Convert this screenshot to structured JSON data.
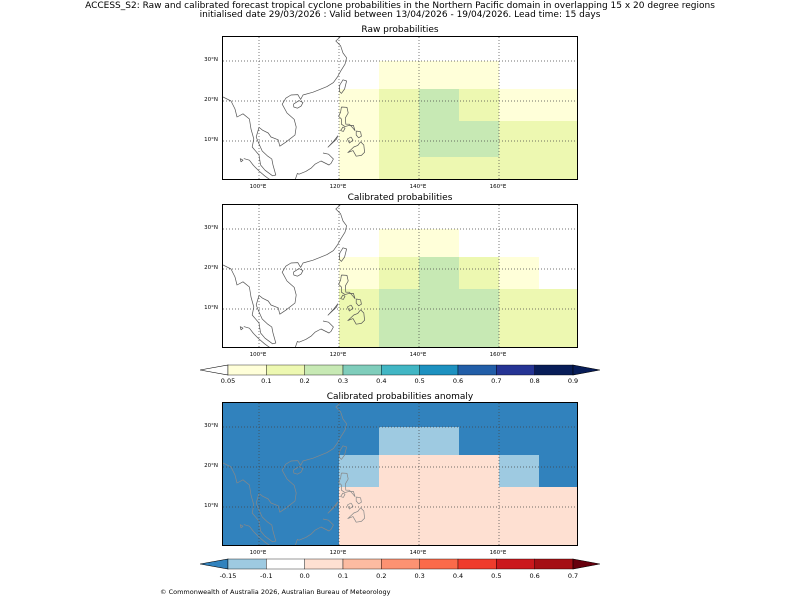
{
  "title": {
    "line1": "ACCESS_S2: Raw and calibrated forecast tropical cyclone probabilities in the Northern Pacific domain in overlapping 15 x 20 degree regions",
    "line2": "initialised date 29/03/2026 :  Valid between 13/04/2026 - 19/04/2026. Lead time: 15 days"
  },
  "map_extent": {
    "lon_min": 91,
    "lon_max": 180,
    "lat_min": 0,
    "lat_max": 36
  },
  "lat_ticks": [
    {
      "value": 10,
      "label": "10°N"
    },
    {
      "value": 20,
      "label": "20°N"
    },
    {
      "value": 30,
      "label": "30°N"
    }
  ],
  "lon_ticks": [
    {
      "value": 100,
      "label": "100°E"
    },
    {
      "value": 120,
      "label": "120°E"
    },
    {
      "value": 140,
      "label": "140°E"
    },
    {
      "value": 160,
      "label": "160°E"
    }
  ],
  "colors": {
    "prob_bins": [
      "#ffffd9",
      "#edf8b1",
      "#c7e9b4",
      "#7fcdbb",
      "#41b6c4",
      "#1d91c0",
      "#225ea8",
      "#253494",
      "#081d58"
    ],
    "anom_bins": [
      "#3182bd",
      "#9ecae1",
      "#ffffff",
      "#fee0d2",
      "#fcbba1",
      "#fc9272",
      "#fb6a4a",
      "#ef3b2c",
      "#cb181d",
      "#a50f15",
      "#67000d"
    ],
    "coast": "#555555",
    "coast_anomaly": "#888888"
  },
  "panels": [
    {
      "title": "Raw probabilities",
      "cells": [
        {
          "lon": [
            130,
            160
          ],
          "lat": [
            23,
            30
          ],
          "prob": 0.08
        },
        {
          "lon": [
            120,
            130
          ],
          "lat": [
            0,
            23
          ],
          "prob": 0.08
        },
        {
          "lon": [
            130,
            140
          ],
          "lat": [
            0,
            23
          ],
          "prob": 0.15
        },
        {
          "lon": [
            140,
            150
          ],
          "lat": [
            6,
            23
          ],
          "prob": 0.25
        },
        {
          "lon": [
            150,
            160
          ],
          "lat": [
            6,
            15
          ],
          "prob": 0.25
        },
        {
          "lon": [
            140,
            150
          ],
          "lat": [
            0,
            6
          ],
          "prob": 0.15
        },
        {
          "lon": [
            150,
            160
          ],
          "lat": [
            0,
            6
          ],
          "prob": 0.15
        },
        {
          "lon": [
            150,
            160
          ],
          "lat": [
            15,
            23
          ],
          "prob": 0.15
        },
        {
          "lon": [
            160,
            180
          ],
          "lat": [
            0,
            15
          ],
          "prob": 0.15
        },
        {
          "lon": [
            160,
            180
          ],
          "lat": [
            15,
            23
          ],
          "prob": 0.08
        }
      ]
    },
    {
      "title": "Calibrated probabilities",
      "cells": [
        {
          "lon": [
            130,
            150
          ],
          "lat": [
            23,
            30
          ],
          "prob": 0.08
        },
        {
          "lon": [
            120,
            130
          ],
          "lat": [
            15,
            23
          ],
          "prob": 0.08
        },
        {
          "lon": [
            120,
            130
          ],
          "lat": [
            0,
            15
          ],
          "prob": 0.15
        },
        {
          "lon": [
            130,
            140
          ],
          "lat": [
            15,
            23
          ],
          "prob": 0.15
        },
        {
          "lon": [
            130,
            140
          ],
          "lat": [
            0,
            15
          ],
          "prob": 0.25
        },
        {
          "lon": [
            140,
            150
          ],
          "lat": [
            0,
            23
          ],
          "prob": 0.25
        },
        {
          "lon": [
            150,
            160
          ],
          "lat": [
            15,
            23
          ],
          "prob": 0.15
        },
        {
          "lon": [
            150,
            160
          ],
          "lat": [
            0,
            15
          ],
          "prob": 0.25
        },
        {
          "lon": [
            160,
            170
          ],
          "lat": [
            15,
            23
          ],
          "prob": 0.08
        },
        {
          "lon": [
            160,
            180
          ],
          "lat": [
            0,
            15
          ],
          "prob": 0.15
        }
      ]
    },
    {
      "title": "Calibrated probabilities anomaly",
      "cells": [
        {
          "lon": [
            91,
            180
          ],
          "lat": [
            0,
            36
          ],
          "anom": -0.2
        },
        {
          "lon": [
            130,
            150
          ],
          "lat": [
            23,
            30
          ],
          "anom": -0.12
        },
        {
          "lon": [
            120,
            130
          ],
          "lat": [
            15,
            23
          ],
          "anom": -0.12
        },
        {
          "lon": [
            160,
            170
          ],
          "lat": [
            15,
            23
          ],
          "anom": -0.12
        },
        {
          "lon": [
            130,
            140
          ],
          "lat": [
            15,
            23
          ],
          "anom": 0
        },
        {
          "lon": [
            150,
            160
          ],
          "lat": [
            15,
            23
          ],
          "anom": 0
        },
        {
          "lon": [
            120,
            130
          ],
          "lat": [
            0,
            15
          ],
          "anom": 0
        },
        {
          "lon": [
            160,
            180
          ],
          "lat": [
            0,
            15
          ],
          "anom": 0
        },
        {
          "lon": [
            170,
            180
          ],
          "lat": [
            15,
            23
          ],
          "anom": -0.2
        },
        {
          "lon": [
            140,
            150
          ],
          "lat": [
            15,
            23
          ],
          "anom": 0.05
        },
        {
          "lon": [
            130,
            160
          ],
          "lat": [
            0,
            15
          ],
          "anom": 0.05
        }
      ]
    }
  ],
  "prob_colorbar": {
    "ticks": [
      "0.05",
      "0.1",
      "0.2",
      "0.3",
      "0.4",
      "0.5",
      "0.6",
      "0.7",
      "0.8",
      "0.9"
    ],
    "bounds": [
      0.05,
      0.1,
      0.2,
      0.3,
      0.4,
      0.5,
      0.6,
      0.7,
      0.8,
      0.9
    ]
  },
  "anom_colorbar": {
    "ticks": [
      "-0.15",
      "-0.1",
      "0.0",
      "0.1",
      "0.2",
      "0.3",
      "0.4",
      "0.5",
      "0.6",
      "0.7"
    ],
    "bounds": [
      -0.15,
      -0.1,
      0.0,
      0.1,
      0.2,
      0.3,
      0.4,
      0.5,
      0.6,
      0.7
    ]
  },
  "copyright": "© Commonwealth of Australia 2026, Australian Bureau of Meteorology"
}
